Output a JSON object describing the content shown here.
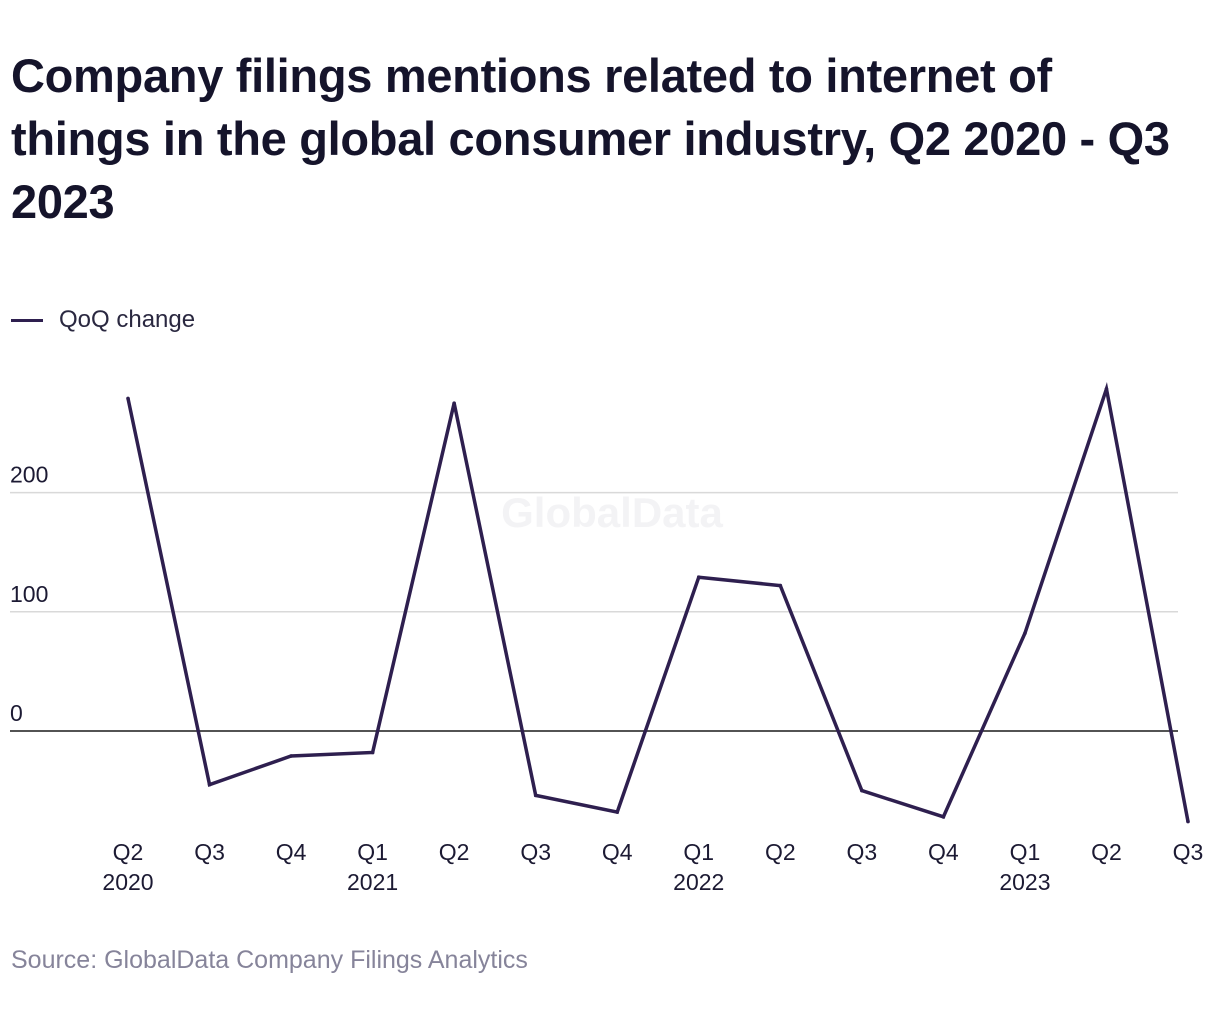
{
  "title": "Company filings mentions related to internet of things in the global consumer industry, Q2 2020 - Q3 2023",
  "source": "Source: GlobalData Company Filings Analytics",
  "watermark": "GlobalData",
  "colors": {
    "line": "#2e1f4f",
    "grid": "#d9d9d9",
    "zero": "#1a1a1a",
    "text": "#1c1a33"
  },
  "chart_data": {
    "type": "line",
    "title": "Company filings mentions related to internet of things in the global consumer industry, Q2 2020 - Q3 2023",
    "categories": [
      {
        "q": "Q2",
        "year": "2020"
      },
      {
        "q": "Q3",
        "year": ""
      },
      {
        "q": "Q4",
        "year": ""
      },
      {
        "q": "Q1",
        "year": "2021"
      },
      {
        "q": "Q2",
        "year": ""
      },
      {
        "q": "Q3",
        "year": ""
      },
      {
        "q": "Q4",
        "year": ""
      },
      {
        "q": "Q1",
        "year": "2022"
      },
      {
        "q": "Q2",
        "year": ""
      },
      {
        "q": "Q3",
        "year": ""
      },
      {
        "q": "Q4",
        "year": ""
      },
      {
        "q": "Q1",
        "year": "2023"
      },
      {
        "q": "Q2",
        "year": ""
      },
      {
        "q": "Q3",
        "year": ""
      }
    ],
    "series": [
      {
        "name": "QoQ change",
        "values": [
          279,
          -45,
          -21,
          -18,
          275,
          -54,
          -68,
          129,
          122,
          -50,
          -72,
          82,
          287,
          -76
        ]
      }
    ],
    "y_ticks": [
      0,
      100,
      200
    ],
    "ylim": [
      -80,
      300
    ],
    "grid": true,
    "legend": "top-left",
    "xlabel": "",
    "ylabel": ""
  }
}
